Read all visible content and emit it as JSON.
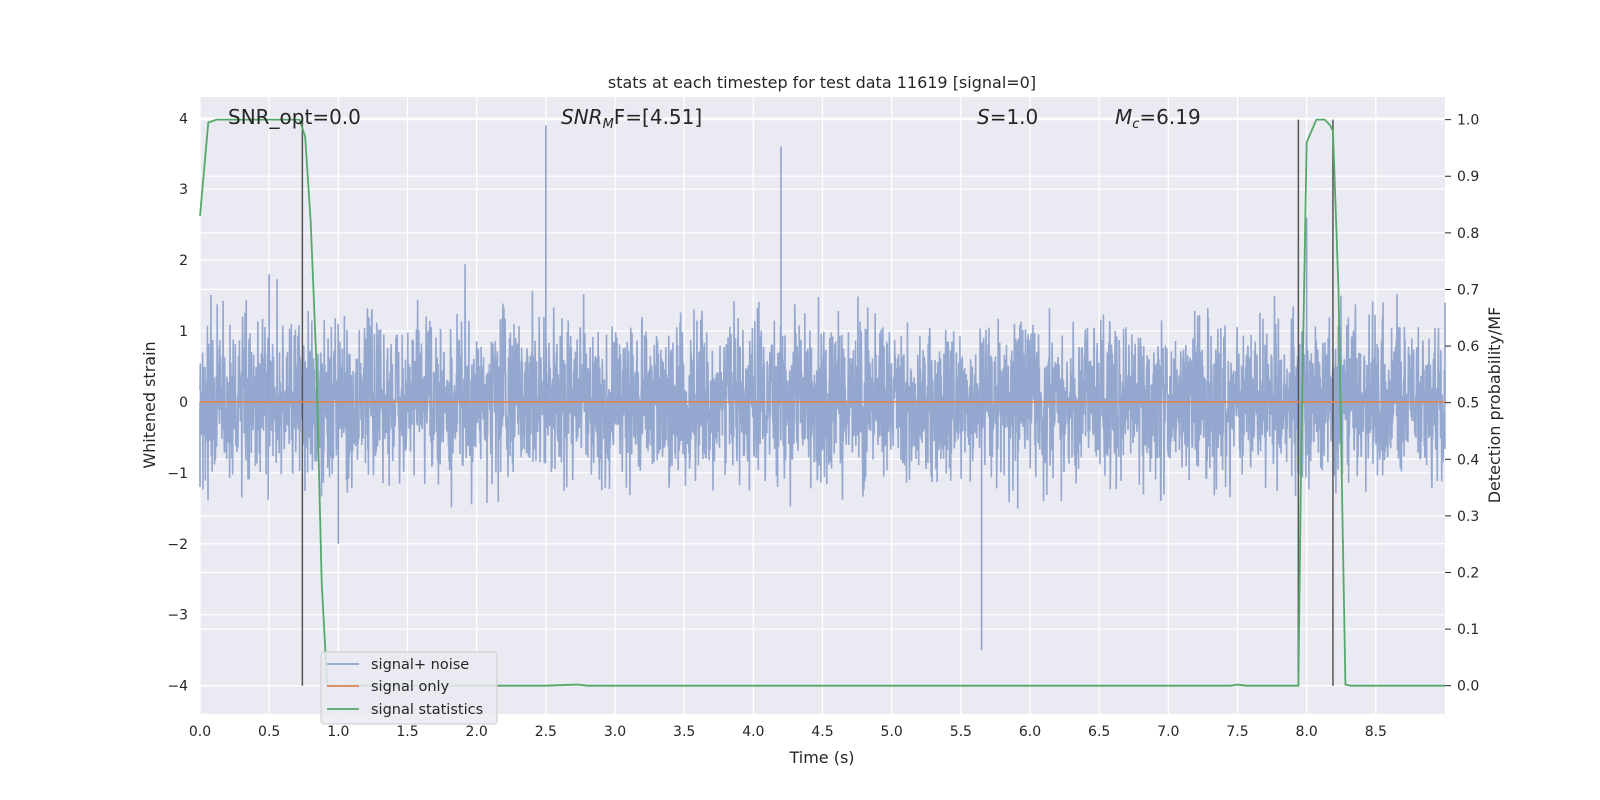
{
  "chart_data": {
    "type": "line",
    "title": "stats at each timestep for test data 11619 [signal=0]",
    "xlabel": "Time (s)",
    "ylabel_left": "Whitened strain",
    "ylabel_right": "Detection probability/MF",
    "xlim": [
      0.0,
      9.0
    ],
    "ylim_left": [
      -4.4,
      4.3
    ],
    "ylim_right": [
      -0.05,
      1.04
    ],
    "x_ticks": [
      "0.0",
      "0.5",
      "1.0",
      "1.5",
      "2.0",
      "2.5",
      "3.0",
      "3.5",
      "4.0",
      "4.5",
      "5.0",
      "5.5",
      "6.0",
      "6.5",
      "7.0",
      "7.5",
      "8.0",
      "8.5"
    ],
    "y_ticks_left": [
      "−4",
      "−3",
      "−2",
      "−1",
      "0",
      "1",
      "2",
      "3",
      "4"
    ],
    "y_ticks_right": [
      "0.0",
      "0.1",
      "0.2",
      "0.3",
      "0.4",
      "0.5",
      "0.6",
      "0.7",
      "0.8",
      "0.9",
      "1.0"
    ],
    "grid": true,
    "legend_position": "lower-left",
    "annotations": {
      "snr_opt": "SNR_opt=0.0",
      "snr_mf_main": "SNR",
      "snr_mf_sub": "M",
      "snr_mf_rest": "F=[4.51]",
      "s_main": "S",
      "s_rest": "=1.0",
      "mc_main": "M",
      "mc_sub": "c",
      "mc_rest": "=6.19"
    },
    "vertical_markers": [
      0.74,
      7.94,
      8.19
    ],
    "series": [
      {
        "name": "signal+ noise",
        "color": "#8fa3cc",
        "description_sample": [
          [
            0.0,
            -1.2
          ],
          [
            0.5,
            1.8
          ],
          [
            1.0,
            -2.0
          ],
          [
            2.5,
            3.9
          ],
          [
            4.2,
            3.6
          ],
          [
            5.65,
            -3.5
          ],
          [
            8.0,
            2.6
          ],
          [
            9.0,
            1.4
          ]
        ]
      },
      {
        "name": "signal only",
        "color": "#dd8452",
        "values_const": 0.0
      },
      {
        "name": "signal statistics",
        "color": "#55a868",
        "x": [
          0.0,
          0.06,
          0.12,
          0.2,
          0.5,
          0.72,
          0.76,
          0.8,
          0.84,
          0.88,
          0.92,
          0.96,
          1.0,
          2.5,
          2.73,
          2.8,
          4.0,
          6.0,
          7.45,
          7.5,
          7.56,
          7.94,
          7.96,
          8.0,
          8.07,
          8.13,
          8.17,
          8.19,
          8.23,
          8.28,
          8.32,
          9.0
        ],
        "y": [
          0.83,
          0.995,
          1.0,
          1.0,
          1.0,
          1.0,
          0.97,
          0.82,
          0.58,
          0.18,
          0.0,
          0.0,
          0.0,
          0.0,
          0.002,
          0.0,
          0.0,
          0.0,
          0.0,
          0.002,
          0.0,
          0.0,
          0.4,
          0.96,
          1.0,
          1.0,
          0.99,
          0.98,
          0.7,
          0.002,
          0.0,
          0.0
        ]
      }
    ]
  }
}
